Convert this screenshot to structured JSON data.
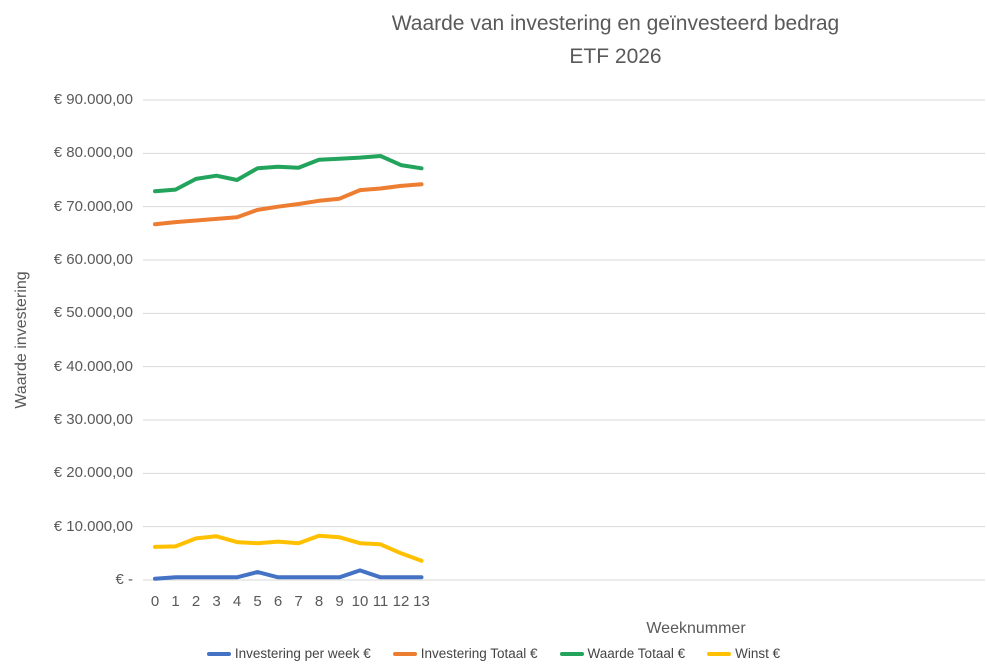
{
  "title": "Waarde van investering en geïnvesteerd bedrag",
  "subtitle": "ETF 2026",
  "axes": {
    "y_title": "Waarde investering",
    "x_title": "Weeknummer"
  },
  "colors": {
    "text_gray": "#595959",
    "gridline": "#D9D9D9",
    "series_blue": "#4472C4",
    "series_orange": "#ED7D31",
    "series_green": "#22A45C",
    "series_yellow": "#FFC000"
  },
  "chart_data": {
    "type": "line",
    "title": "Waarde van investering en geïnvesteerd bedrag ETF 2026",
    "xlabel": "Weeknummer",
    "ylabel": "Waarde investering",
    "x": [
      "0",
      "1",
      "2",
      "3",
      "4",
      "5",
      "6",
      "7",
      "8",
      "9",
      "10",
      "11",
      "12",
      "13"
    ],
    "ylim": [
      0,
      90000
    ],
    "y_tick_step": 10000,
    "y_tick_labels": [
      "€ -",
      "€ 10.000,00",
      "€ 20.000,00",
      "€ 30.000,00",
      "€ 40.000,00",
      "€ 50.000,00",
      "€ 60.000,00",
      "€ 70.000,00",
      "€ 80.000,00",
      "€ 90.000,00"
    ],
    "grid": true,
    "legend_position": "bottom",
    "series": [
      {
        "name": "Investering per week €",
        "color": "#4472C4",
        "values": [
          250,
          500,
          500,
          500,
          500,
          1500,
          500,
          500,
          500,
          500,
          1800,
          500,
          500,
          500
        ]
      },
      {
        "name": "Investering Totaal €",
        "color": "#ED7D31",
        "values": [
          66700,
          67100,
          67400,
          67700,
          68000,
          69400,
          70000,
          70500,
          71100,
          71500,
          73100,
          73400,
          73900,
          74200
        ]
      },
      {
        "name": "Waarde Totaal €",
        "color": "#22A45C",
        "values": [
          72900,
          73200,
          75200,
          75800,
          75000,
          77200,
          77500,
          77300,
          78800,
          79000,
          79200,
          79500,
          77800,
          77200
        ]
      },
      {
        "name": "Winst €",
        "color": "#FFC000",
        "values": [
          6200,
          6300,
          7800,
          8200,
          7100,
          6900,
          7200,
          6900,
          8300,
          8000,
          6900,
          6700,
          5000,
          3600
        ]
      }
    ]
  }
}
